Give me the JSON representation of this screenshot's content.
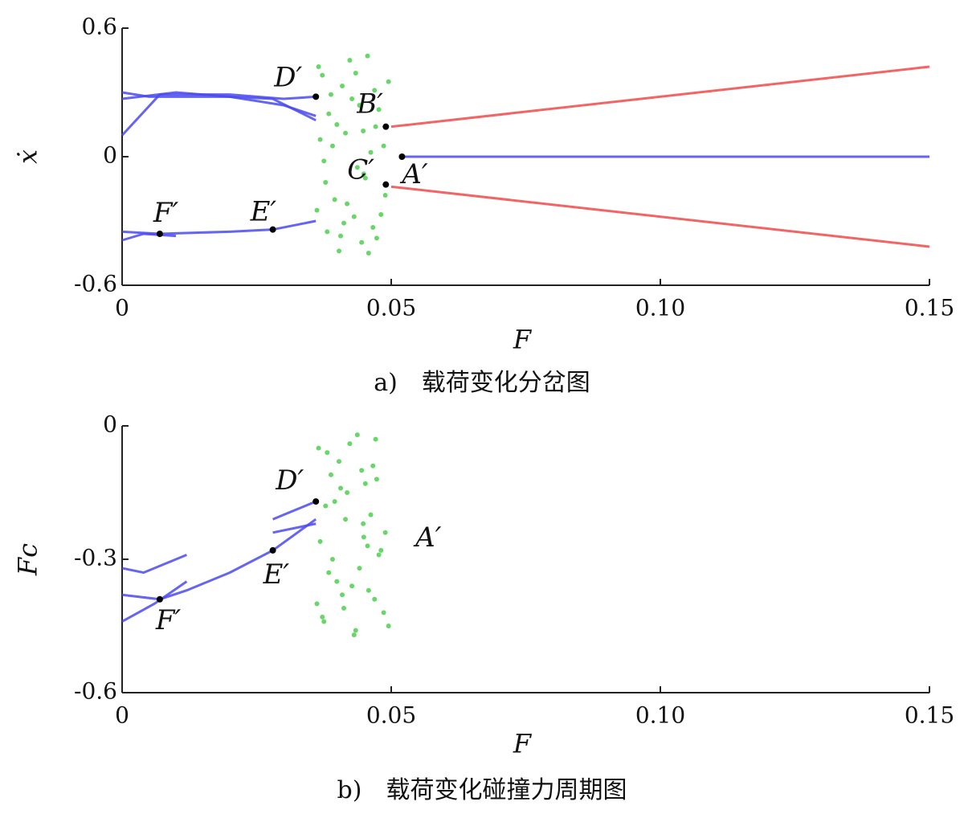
{
  "chart_data": [
    {
      "type": "scatter",
      "caption": "a)　载荷变化分岔图",
      "xlabel": "F",
      "ylabel": "ẋ",
      "xlim": [
        0,
        0.15
      ],
      "ylim": [
        -0.6,
        0.6
      ],
      "xticks": [
        0,
        0.05,
        {
          "value": 0.1,
          "label": "0.10"
        },
        0.15
      ],
      "yticks": [
        -0.6,
        0,
        0.6
      ],
      "series": [
        {
          "mode": "line",
          "color": "#4a4af0",
          "x": [
            0,
            0.007,
            0.02,
            0.03,
            0.036
          ],
          "values": [
            0.1,
            0.29,
            0.29,
            0.27,
            0.28
          ]
        },
        {
          "mode": "line",
          "color": "#4a4af0",
          "x": [
            0,
            0.005,
            0.02,
            0.028,
            0.036
          ],
          "values": [
            0.3,
            0.28,
            0.28,
            0.27,
            0.17
          ]
        },
        {
          "mode": "line",
          "color": "#4a4af0",
          "x": [
            0,
            0.01,
            0.02,
            0.03,
            0.036
          ],
          "values": [
            0.27,
            0.3,
            0.28,
            0.24,
            0.19
          ]
        },
        {
          "mode": "line",
          "color": "#4a4af0",
          "x": [
            0,
            0.007,
            0.02,
            0.028,
            0.036
          ],
          "values": [
            -0.35,
            -0.36,
            -0.35,
            -0.34,
            -0.3
          ]
        },
        {
          "mode": "line",
          "color": "#4a4af0",
          "x": [
            0,
            0.004,
            0.01
          ],
          "values": [
            -0.39,
            -0.36,
            -0.37
          ]
        },
        {
          "mode": "line",
          "color": "#4a4af0",
          "x": [
            0.052,
            0.15
          ],
          "values": [
            0,
            0
          ]
        },
        {
          "mode": "line",
          "color": "#f04a4a",
          "x": [
            0.05,
            0.15
          ],
          "values": [
            0.14,
            0.42
          ]
        },
        {
          "mode": "line",
          "color": "#f04a4a",
          "x": [
            0.05,
            0.15
          ],
          "values": [
            -0.14,
            -0.42
          ]
        },
        {
          "mode": "markers",
          "color": "#44cc44",
          "x": [
            0.0365,
            0.0412,
            0.0448,
            0.0391,
            0.0473,
            0.0427,
            0.0378,
            0.0495,
            0.0403,
            0.0456,
            0.0384,
            0.0437,
            0.0469,
            0.0418,
            0.0489,
            0.0372,
            0.0445,
            0.0399,
            0.0462,
            0.0431,
            0.0381,
            0.0477,
            0.0409,
            0.0452,
            0.0368,
            0.0423,
            0.0486,
            0.0395,
            0.0441,
            0.0466,
            0.0375,
            0.0415,
            0.0458,
            0.0388,
            0.0481,
            0.0434,
            0.0406,
            0.0471,
            0.0362,
            0.0449
          ],
          "values": [
            0.42,
            -0.31,
            0.12,
            0.05,
            -0.38,
            0.27,
            -0.12,
            0.35,
            -0.44,
            0.47,
            0.2,
            -0.05,
            0.31,
            -0.22,
            -0.18,
            0.38,
            -0.4,
            0.15,
            0.02,
            -0.28,
            -0.35,
            0.22,
            0.33,
            -0.1,
            0.08,
            0.45,
            0.05,
            -0.2,
            0.24,
            -0.33,
            -0.02,
            0.11,
            -0.45,
            0.29,
            -0.27,
            0.39,
            -0.37,
            0.14,
            -0.25,
            -0.08
          ]
        }
      ],
      "points": [
        {
          "label": "D′",
          "x": 0.036,
          "y": 0.28,
          "dot": true
        },
        {
          "label": "B′",
          "x": 0.049,
          "y": 0.14,
          "dot": true
        },
        {
          "label": "C′",
          "x": 0.049,
          "y": -0.13,
          "dot": true
        },
        {
          "label": "A′",
          "x": 0.052,
          "y": 0,
          "dot": true
        },
        {
          "label": "F′",
          "x": 0.007,
          "y": -0.36,
          "dot": true
        },
        {
          "label": "E′",
          "x": 0.028,
          "y": -0.34,
          "dot": true
        }
      ]
    },
    {
      "type": "scatter",
      "caption": "b)　载荷变化碰撞力周期图",
      "xlabel": "F",
      "ylabel": "Fc",
      "xlim": [
        0,
        0.15
      ],
      "ylim": [
        -0.6,
        0
      ],
      "xticks": [
        0,
        0.05,
        {
          "value": 0.1,
          "label": "0.10"
        },
        0.15
      ],
      "yticks": [
        -0.6,
        -0.3,
        0
      ],
      "series": [
        {
          "mode": "line",
          "color": "#4a4af0",
          "x": [
            0,
            0.004,
            0.012
          ],
          "values": [
            -0.32,
            -0.33,
            -0.29
          ]
        },
        {
          "mode": "line",
          "color": "#4a4af0",
          "x": [
            0,
            0.006,
            0.012
          ],
          "values": [
            -0.44,
            -0.4,
            -0.35
          ]
        },
        {
          "mode": "line",
          "color": "#4a4af0",
          "x": [
            0,
            0.007,
            0.012,
            0.02,
            0.028,
            0.036
          ],
          "values": [
            -0.38,
            -0.39,
            -0.37,
            -0.33,
            -0.28,
            -0.21
          ]
        },
        {
          "mode": "line",
          "color": "#4a4af0",
          "x": [
            0.028,
            0.036
          ],
          "values": [
            -0.21,
            -0.17
          ]
        },
        {
          "mode": "line",
          "color": "#4a4af0",
          "x": [
            0.028,
            0.036
          ],
          "values": [
            -0.24,
            -0.22
          ]
        },
        {
          "mode": "markers",
          "color": "#44cc44",
          "x": [
            0.0365,
            0.0412,
            0.0448,
            0.0391,
            0.0473,
            0.0427,
            0.0378,
            0.0495,
            0.0403,
            0.0456,
            0.0384,
            0.0437,
            0.0469,
            0.0418,
            0.0489,
            0.0372,
            0.0445,
            0.0399,
            0.0462,
            0.0431,
            0.0381,
            0.0477,
            0.0409,
            0.0452,
            0.0368,
            0.0423,
            0.0486,
            0.0395,
            0.0441,
            0.0466,
            0.0375,
            0.0415,
            0.0458,
            0.0388,
            0.0481,
            0.0434,
            0.0406,
            0.0471,
            0.0362,
            0.0449
          ],
          "values": [
            -0.05,
            -0.41,
            -0.22,
            -0.3,
            -0.12,
            -0.36,
            -0.18,
            -0.45,
            -0.08,
            -0.27,
            -0.33,
            -0.02,
            -0.39,
            -0.15,
            -0.24,
            -0.43,
            -0.1,
            -0.35,
            -0.2,
            -0.47,
            -0.06,
            -0.29,
            -0.38,
            -0.13,
            -0.26,
            -0.04,
            -0.42,
            -0.17,
            -0.32,
            -0.09,
            -0.44,
            -0.21,
            -0.37,
            -0.11,
            -0.28,
            -0.46,
            -0.14,
            -0.03,
            -0.4,
            -0.25
          ]
        }
      ],
      "points": [
        {
          "label": "D′",
          "x": 0.036,
          "y": -0.17,
          "dot": true
        },
        {
          "label": "E′",
          "x": 0.028,
          "y": -0.28,
          "dot": true
        },
        {
          "label": "F′",
          "x": 0.007,
          "y": -0.39,
          "dot": true
        },
        {
          "label": "A′",
          "x": 0.0545,
          "y": -0.255,
          "dot": false
        }
      ]
    }
  ]
}
